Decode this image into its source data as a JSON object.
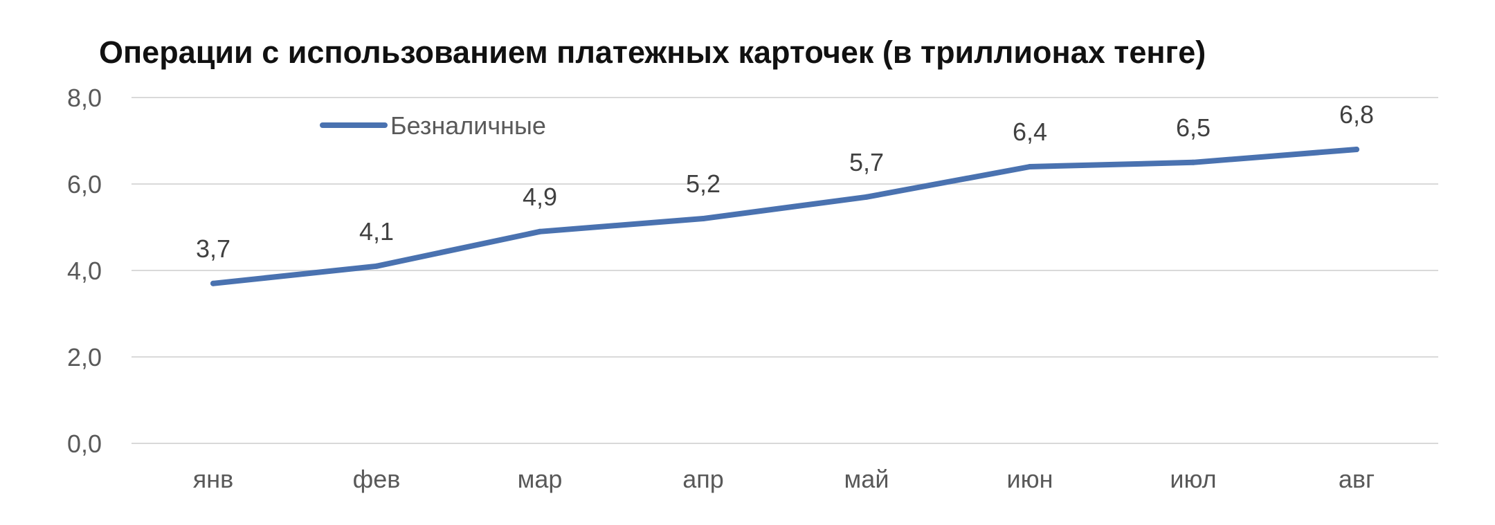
{
  "chart_data": {
    "type": "line",
    "title": "Операции с использованием платежных карточек (в триллионах тенге)",
    "categories": [
      "янв",
      "фев",
      "мар",
      "апр",
      "май",
      "июн",
      "июл",
      "авг"
    ],
    "series": [
      {
        "name": "Безналичные",
        "values": [
          3.7,
          4.1,
          4.9,
          5.2,
          5.7,
          6.4,
          6.5,
          6.8
        ],
        "labels": [
          "3,7",
          "4,1",
          "4,9",
          "5,2",
          "5,7",
          "6,4",
          "6,5",
          "6,8"
        ],
        "color": "#4a72b0"
      }
    ],
    "ylim": [
      0,
      8
    ],
    "yticks": [
      0,
      2,
      4,
      6,
      8
    ],
    "ytick_labels": [
      "0,0",
      "2,0",
      "4,0",
      "6,0",
      "8,0"
    ],
    "grid": true,
    "legend_position": "top-left"
  }
}
